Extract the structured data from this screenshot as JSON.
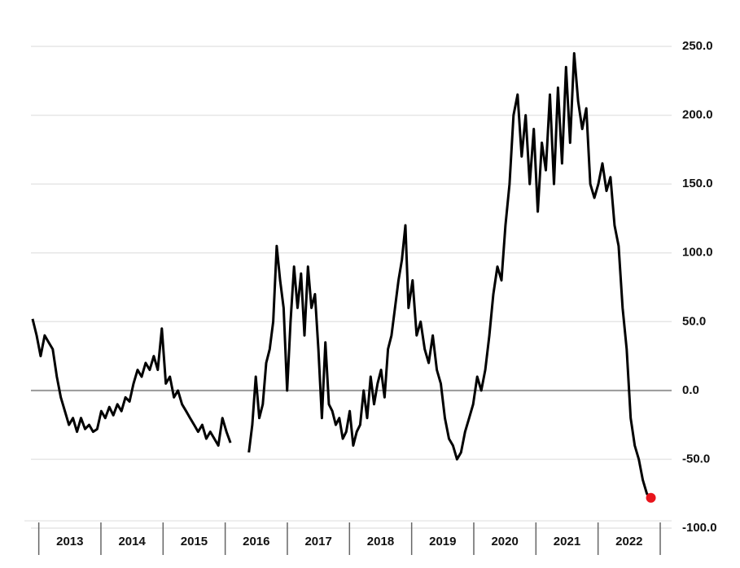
{
  "chart_data": {
    "type": "line",
    "color": "#000000",
    "marker_color": "#e8141c",
    "grid": true,
    "xlim": [
      2012.9,
      2023.0
    ],
    "xticks": [
      {
        "value": 2013.5,
        "label": "2013"
      },
      {
        "value": 2014.5,
        "label": "2014"
      },
      {
        "value": 2015.5,
        "label": "2015"
      },
      {
        "value": 2016.5,
        "label": "2016"
      },
      {
        "value": 2017.5,
        "label": "2017"
      },
      {
        "value": 2018.5,
        "label": "2018"
      },
      {
        "value": 2019.5,
        "label": "2019"
      },
      {
        "value": 2020.5,
        "label": "2020"
      },
      {
        "value": 2021.5,
        "label": "2021"
      },
      {
        "value": 2022.5,
        "label": "2022"
      }
    ],
    "ylim": [
      -100,
      250
    ],
    "yticks": [
      {
        "value": 250,
        "label": "250.0"
      },
      {
        "value": 200,
        "label": "200.0"
      },
      {
        "value": 150,
        "label": "150.0"
      },
      {
        "value": 100,
        "label": "100.0"
      },
      {
        "value": 50,
        "label": "50.0"
      },
      {
        "value": 0,
        "label": "0.0"
      },
      {
        "value": -50,
        "label": "-50.0"
      },
      {
        "value": -100,
        "label": "-100.0"
      }
    ],
    "x": [
      2012.9,
      2012.965,
      2013.03,
      2013.095,
      2013.16,
      2013.225,
      2013.29,
      2013.355,
      2013.42,
      2013.485,
      2013.55,
      2013.615,
      2013.68,
      2013.745,
      2013.81,
      2013.875,
      2013.94,
      2014.005,
      2014.07,
      2014.135,
      2014.2,
      2014.265,
      2014.33,
      2014.395,
      2014.46,
      2014.525,
      2014.59,
      2014.655,
      2014.72,
      2014.785,
      2014.85,
      2014.915,
      2014.98,
      2015.045,
      2015.11,
      2015.175,
      2015.24,
      2015.305,
      2015.37,
      2015.435,
      2015.5,
      2015.565,
      2015.63,
      2015.695,
      2015.76,
      2015.825,
      2015.89,
      2015.955,
      2016.02,
      2016.085,
      2016.2,
      2016.38,
      2016.436,
      2016.492,
      2016.548,
      2016.604,
      2016.66,
      2016.716,
      2016.772,
      2016.828,
      2016.884,
      2016.94,
      2016.996,
      2017.052,
      2017.108,
      2017.164,
      2017.22,
      2017.276,
      2017.332,
      2017.388,
      2017.444,
      2017.5,
      2017.556,
      2017.612,
      2017.668,
      2017.724,
      2017.78,
      2017.836,
      2017.892,
      2017.948,
      2018.004,
      2018.06,
      2018.116,
      2018.172,
      2018.228,
      2018.284,
      2018.34,
      2018.396,
      2018.452,
      2018.508,
      2018.564,
      2018.62,
      2018.676,
      2018.732,
      2018.788,
      2018.844,
      2018.9,
      2018.95,
      2019.015,
      2019.08,
      2019.145,
      2019.21,
      2019.275,
      2019.34,
      2019.405,
      2019.47,
      2019.535,
      2019.6,
      2019.665,
      2019.73,
      2019.795,
      2019.86,
      2019.925,
      2019.99,
      2020.055,
      2020.12,
      2020.185,
      2020.25,
      2020.315,
      2020.38,
      2020.445,
      2020.51,
      2020.575,
      2020.64,
      2020.705,
      2020.77,
      2020.835,
      2020.9,
      2020.965,
      2021.03,
      2021.095,
      2021.16,
      2021.225,
      2021.29,
      2021.355,
      2021.42,
      2021.485,
      2021.55,
      2021.615,
      2021.68,
      2021.745,
      2021.81,
      2021.875,
      2021.94,
      2022.005,
      2022.07,
      2022.135,
      2022.2,
      2022.265,
      2022.33,
      2022.395,
      2022.46,
      2022.525,
      2022.59,
      2022.655,
      2022.72,
      2022.785,
      2022.85
    ],
    "values": [
      52,
      40,
      25,
      40,
      35,
      30,
      10,
      -5,
      -15,
      -25,
      -20,
      -30,
      -20,
      -28,
      -25,
      -30,
      -28,
      -15,
      -20,
      -12,
      -18,
      -10,
      -15,
      -5,
      -8,
      5,
      15,
      10,
      20,
      15,
      25,
      15,
      45,
      5,
      10,
      -5,
      0,
      -10,
      -15,
      -20,
      -25,
      -30,
      -25,
      -35,
      -30,
      -35,
      -40,
      -20,
      -30,
      -38,
      null,
      -45,
      -25,
      10,
      -20,
      -10,
      20,
      30,
      50,
      105,
      80,
      60,
      0,
      50,
      90,
      60,
      85,
      40,
      90,
      60,
      70,
      30,
      -20,
      35,
      -10,
      -15,
      -25,
      -20,
      -35,
      -30,
      -15,
      -40,
      -30,
      -25,
      0,
      -20,
      10,
      -10,
      5,
      15,
      -5,
      30,
      40,
      60,
      80,
      95,
      120,
      60,
      80,
      40,
      50,
      30,
      20,
      40,
      15,
      5,
      -20,
      -35,
      -40,
      -50,
      -45,
      -30,
      -20,
      -10,
      10,
      0,
      15,
      40,
      70,
      90,
      80,
      120,
      150,
      200,
      215,
      170,
      200,
      150,
      190,
      130,
      180,
      160,
      215,
      150,
      220,
      165,
      235,
      180,
      245,
      210,
      190,
      205,
      150,
      140,
      150,
      165,
      145,
      155,
      120,
      105,
      60,
      30,
      -20,
      -40,
      -50,
      -65,
      -75,
      -78
    ]
  }
}
